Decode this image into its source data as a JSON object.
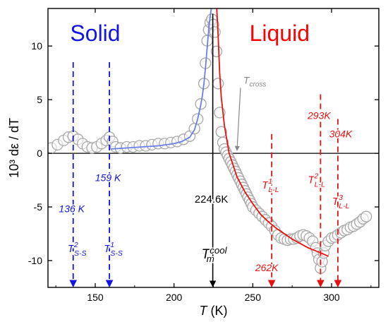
{
  "chart_data": {
    "type": "scatter",
    "xlabel": "T",
    "xlabel_unit": "(K)",
    "ylabel": "10³ dε / dT",
    "xlim": [
      120,
      330
    ],
    "ylim": [
      -12.5,
      13.5
    ],
    "x_ticks": [
      150,
      200,
      250,
      300
    ],
    "y_ticks": [
      -10,
      -5,
      0,
      5,
      10
    ],
    "grid": false,
    "regions": [
      {
        "label": "Solid",
        "color": "#1414e6",
        "anchor_x": 150
      },
      {
        "label": "Liquid",
        "color": "#ff0000",
        "anchor_x": 267
      }
    ],
    "series": [
      {
        "marker": "open-circle",
        "color": "#a8a8a8",
        "points": [
          [
            122,
            0.5
          ],
          [
            126,
            0.8
          ],
          [
            130,
            1.2
          ],
          [
            133,
            1.5
          ],
          [
            136,
            1.6
          ],
          [
            139,
            1.3
          ],
          [
            142,
            0.9
          ],
          [
            145,
            0.6
          ],
          [
            148,
            0.5
          ],
          [
            151,
            0.6
          ],
          [
            154,
            0.9
          ],
          [
            157,
            1.2
          ],
          [
            159,
            1.5
          ],
          [
            161,
            1.1
          ],
          [
            163,
            0.6
          ],
          [
            166,
            0.5
          ],
          [
            170,
            0.6
          ],
          [
            174,
            0.6
          ],
          [
            178,
            0.7
          ],
          [
            182,
            0.7
          ],
          [
            186,
            0.8
          ],
          [
            190,
            0.9
          ],
          [
            194,
            0.9
          ],
          [
            198,
            1.0
          ],
          [
            202,
            1.1
          ],
          [
            206,
            1.3
          ],
          [
            210,
            1.6
          ],
          [
            213,
            2.3
          ],
          [
            215,
            3.2
          ],
          [
            217,
            4.6
          ],
          [
            219,
            6.5
          ],
          [
            220,
            8.4
          ],
          [
            221,
            10.5
          ],
          [
            222,
            11.5
          ],
          [
            223,
            12.2
          ],
          [
            224,
            12.5
          ],
          [
            225,
            12.0
          ],
          [
            226,
            11.3
          ],
          [
            227,
            9.5
          ],
          [
            228,
            6.5
          ],
          [
            229,
            3.8
          ],
          [
            230,
            2.0
          ],
          [
            231,
            1.0
          ],
          [
            232,
            0.4
          ],
          [
            233,
            0.1
          ],
          [
            234,
            -0.2
          ],
          [
            235,
            -0.5
          ],
          [
            236,
            -0.8
          ],
          [
            237,
            -1.1
          ],
          [
            238,
            -1.4
          ],
          [
            239,
            -1.7
          ],
          [
            240,
            -2.0
          ],
          [
            241,
            -2.3
          ],
          [
            242,
            -2.6
          ],
          [
            243,
            -2.9
          ],
          [
            244,
            -3.2
          ],
          [
            245,
            -3.5
          ],
          [
            246,
            -3.8
          ],
          [
            247,
            -4.1
          ],
          [
            248,
            -4.4
          ],
          [
            249,
            -4.7
          ],
          [
            250,
            -5.0
          ],
          [
            252,
            -5.3
          ],
          [
            254,
            -5.6
          ],
          [
            256,
            -5.9
          ],
          [
            258,
            -6.2
          ],
          [
            260,
            -6.5
          ],
          [
            262,
            -6.8
          ],
          [
            264,
            -7.2
          ],
          [
            266,
            -7.6
          ],
          [
            268,
            -7.9
          ],
          [
            270,
            -8.0
          ],
          [
            272,
            -8.1
          ],
          [
            274,
            -8.0
          ],
          [
            276,
            -8.0
          ],
          [
            278,
            -7.9
          ],
          [
            280,
            -7.7
          ],
          [
            282,
            -7.6
          ],
          [
            284,
            -7.7
          ],
          [
            286,
            -7.9
          ],
          [
            288,
            -8.2
          ],
          [
            290,
            -8.8
          ],
          [
            291,
            -9.3
          ],
          [
            292,
            -9.9
          ],
          [
            293,
            -10.7
          ],
          [
            294,
            -10.1
          ],
          [
            295,
            -9.3
          ],
          [
            296,
            -8.6
          ],
          [
            298,
            -8.2
          ],
          [
            300,
            -7.9
          ],
          [
            302,
            -7.8
          ],
          [
            304,
            -7.6
          ],
          [
            306,
            -7.4
          ],
          [
            308,
            -7.2
          ],
          [
            310,
            -7.1
          ],
          [
            312,
            -6.9
          ],
          [
            314,
            -6.8
          ],
          [
            316,
            -6.6
          ],
          [
            318,
            -6.4
          ],
          [
            320,
            -6.1
          ],
          [
            322,
            -5.9
          ]
        ]
      },
      {
        "name": "solid-fit",
        "type": "line",
        "color": "#6a7ee8",
        "points": [
          [
            160,
            0.4
          ],
          [
            170,
            0.5
          ],
          [
            180,
            0.6
          ],
          [
            190,
            0.7
          ],
          [
            200,
            0.9
          ],
          [
            205,
            1.1
          ],
          [
            210,
            1.5
          ],
          [
            213,
            2.2
          ],
          [
            215,
            3.2
          ],
          [
            217,
            4.5
          ],
          [
            218,
            5.4
          ],
          [
            219,
            6.5
          ],
          [
            220,
            8.0
          ],
          [
            221,
            9.8
          ],
          [
            222,
            11.5
          ],
          [
            223,
            12.8
          ],
          [
            224,
            13.8
          ]
        ]
      },
      {
        "name": "liquid-fit",
        "type": "line",
        "color": "#e81010",
        "points": [
          [
            227,
            13.8
          ],
          [
            228,
            11.0
          ],
          [
            229,
            7.5
          ],
          [
            230,
            5.2
          ],
          [
            232,
            2.6
          ],
          [
            235,
            0.0
          ],
          [
            240,
            -2.2
          ],
          [
            245,
            -3.6
          ],
          [
            250,
            -4.7
          ],
          [
            255,
            -5.7
          ],
          [
            260,
            -6.4
          ],
          [
            265,
            -7.0
          ],
          [
            270,
            -7.5
          ],
          [
            275,
            -8.0
          ],
          [
            280,
            -8.4
          ],
          [
            285,
            -8.8
          ],
          [
            290,
            -9.1
          ],
          [
            295,
            -9.4
          ],
          [
            298,
            -9.6
          ]
        ]
      }
    ],
    "markers": [
      {
        "x": 136,
        "color": "#1414e6",
        "style": "dashed",
        "temp_label": "136 K",
        "name_main": "T",
        "name_sup": "2",
        "name_sub": "S-S"
      },
      {
        "x": 159,
        "color": "#1414e6",
        "style": "dashed",
        "temp_label": "159 K",
        "name_main": "T",
        "name_sup": "1",
        "name_sub": "S-S"
      },
      {
        "x": 224.6,
        "color": "#000000",
        "style": "solid",
        "temp_label": "224.6K",
        "name_main": "T",
        "name_sup": "cool",
        "name_sub": "m"
      },
      {
        "x": 262,
        "color": "#e81010",
        "style": "dashed",
        "temp_label": "262K",
        "name_main": "T",
        "name_sup": "1",
        "name_sub": "L-L"
      },
      {
        "x": 293,
        "color": "#e81010",
        "style": "dashed",
        "temp_label": "293K",
        "name_main": "T",
        "name_sup": "2",
        "name_sub": "L-L"
      },
      {
        "x": 304,
        "color": "#e81010",
        "style": "dashed",
        "temp_label": "304K",
        "name_main": "T",
        "name_sup": "3",
        "name_sub": "L-L"
      }
    ],
    "annotations": [
      {
        "text_main": "T",
        "text_sub": "cross",
        "color": "#888888",
        "x": 244,
        "y": 6.5,
        "arrow_to": [
          240,
          0.3
        ]
      }
    ]
  }
}
